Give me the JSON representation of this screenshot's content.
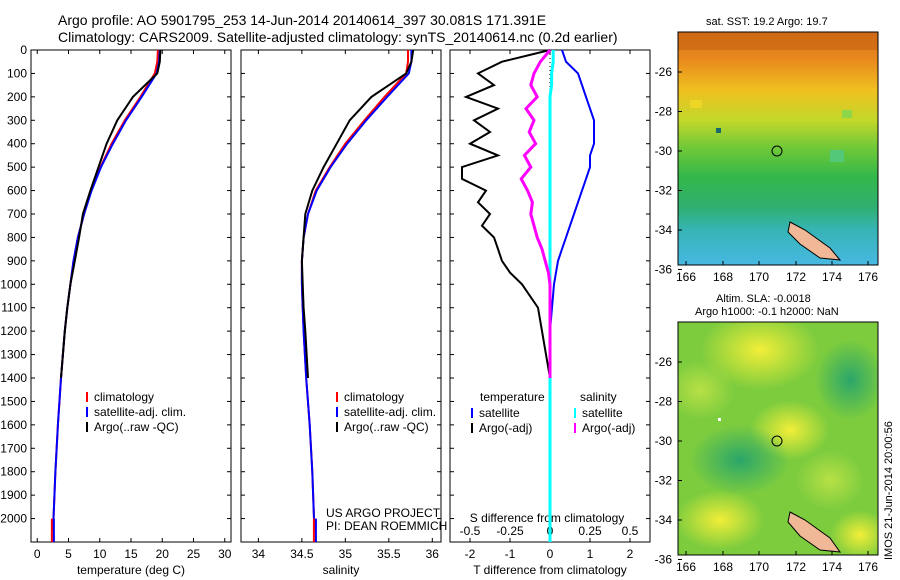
{
  "header": {
    "line1": "Argo profile: AO 5901795_253 14-Jun-2014 20140614_397 30.081S 171.391E",
    "line2": "Climatology: CARS2009. Satellite-adjusted climatology: synTS_20140614.nc (0.2d earlier)"
  },
  "credit": {
    "line1": "US ARGO PROJECT",
    "line2": "PI: DEAN ROEMMICH"
  },
  "stamp": "IMOS 21-Jun-2014 20:00:56",
  "maps": {
    "sst_title": "sat. SST: 19.2 Argo: 19.7",
    "sla_title1": "Altim. SLA: -0.0018",
    "sla_title2": "Argo h1000: -0.1 h2000: NaN",
    "lon_ticks": [
      "166",
      "168",
      "170",
      "172",
      "174",
      "176"
    ],
    "lat_ticks": [
      "-26",
      "-28",
      "-30",
      "-32",
      "-34",
      "-36"
    ],
    "argo_position": {
      "lon": 171.391,
      "lat": -30.081
    }
  },
  "colors": {
    "climatology": "#ff0000",
    "satellite": "#0000ff",
    "argo": "#000000",
    "salinity_satellite": "#00ffff",
    "salinity_argo": "#ff00ff"
  },
  "chart_data": [
    {
      "type": "line",
      "xlabel": "temperature (deg C)",
      "ylabel": "",
      "xlim": [
        -1,
        31
      ],
      "ylim": [
        2100,
        0
      ],
      "xticks": [
        "0",
        "5",
        "10",
        "15",
        "20",
        "25",
        "30"
      ],
      "yticks": [
        "0",
        "100",
        "200",
        "300",
        "400",
        "500",
        "600",
        "700",
        "800",
        "900",
        "1000",
        "1100",
        "1200",
        "1300",
        "1400",
        "1500",
        "1600",
        "1700",
        "1800",
        "1900",
        "2000"
      ],
      "depth": [
        0,
        50,
        100,
        200,
        300,
        400,
        500,
        600,
        700,
        800,
        900,
        1000,
        1100,
        1200,
        1400,
        1600,
        1800,
        2000,
        2050
      ],
      "legend": [
        "climatology",
        "satellite-adj. clim.",
        "Argo(..raw -QC)"
      ],
      "series": [
        {
          "name": "climatology",
          "values": [
            19.3,
            19.2,
            18.8,
            16.5,
            14.0,
            11.9,
            10.1,
            8.6,
            7.5,
            6.5,
            5.8,
            5.3,
            4.8,
            4.4,
            3.8,
            3.3,
            2.9,
            2.6,
            2.5
          ]
        },
        {
          "name": "satellite-adj. clim.",
          "values": [
            19.6,
            19.5,
            19.1,
            16.7,
            14.2,
            12.1,
            10.2,
            8.7,
            7.5,
            6.5,
            5.8,
            5.3,
            4.8,
            4.4,
            3.8,
            3.3,
            2.9,
            2.6,
            2.5
          ]
        },
        {
          "name": "Argo(..raw -QC)",
          "values": [
            19.7,
            19.6,
            19.2,
            15.3,
            12.8,
            11.1,
            9.8,
            8.5,
            7.3,
            6.7,
            6.0,
            5.3,
            4.8,
            4.4,
            3.8
          ]
        }
      ]
    },
    {
      "type": "line",
      "xlabel": "salinity",
      "ylabel": "",
      "xlim": [
        33.8,
        36.1
      ],
      "ylim": [
        2100,
        0
      ],
      "xticks": [
        "34",
        "34.5",
        "35",
        "35.5",
        "36"
      ],
      "depth": [
        0,
        50,
        100,
        200,
        300,
        400,
        500,
        600,
        700,
        800,
        900,
        1000,
        1100,
        1200,
        1400,
        1600,
        1800,
        2000,
        2050
      ],
      "legend": [
        "climatology",
        "satellite-adj. clim.",
        "Argo(..raw -QC)"
      ],
      "series": [
        {
          "name": "climatology",
          "values": [
            35.72,
            35.72,
            35.7,
            35.45,
            35.22,
            35.0,
            34.82,
            34.66,
            34.57,
            34.52,
            34.5,
            34.5,
            34.51,
            34.52,
            34.55,
            34.59,
            34.62,
            34.64,
            34.65
          ]
        },
        {
          "name": "satellite-adj. clim.",
          "values": [
            35.76,
            35.76,
            35.73,
            35.48,
            35.24,
            35.02,
            34.83,
            34.67,
            34.57,
            34.52,
            34.5,
            34.5,
            34.51,
            34.52,
            34.55,
            34.59,
            34.62,
            34.64,
            34.65
          ]
        },
        {
          "name": "Argo(..raw -QC)",
          "values": [
            35.78,
            35.76,
            35.7,
            35.3,
            35.05,
            34.9,
            34.75,
            34.62,
            34.54,
            34.52,
            34.5,
            34.51,
            34.52,
            34.54,
            34.57
          ]
        }
      ]
    },
    {
      "type": "line",
      "xlabel": "T difference from climatology",
      "xlabel_top": "S difference from climatology",
      "ylabel": "",
      "xlim": [
        -2.5,
        2.5
      ],
      "ylim": [
        2100,
        0
      ],
      "xticks": [
        "-2",
        "-1",
        "0",
        "1",
        "2"
      ],
      "xticks_top": [
        "-0.5",
        "-0.25",
        "0",
        "0.25",
        "0.5"
      ],
      "depth": [
        0,
        50,
        100,
        150,
        200,
        250,
        300,
        350,
        400,
        450,
        500,
        550,
        600,
        650,
        700,
        750,
        800,
        850,
        900,
        950,
        1000,
        1100,
        1200,
        1300,
        1400
      ],
      "legend_titles": [
        "temperature",
        "salinity"
      ],
      "legend": [
        "satellite",
        "Argo(-adj)",
        "satellite",
        "Argo(-adj)"
      ],
      "series": [
        {
          "name": "satellite",
          "group": "temperature",
          "values": [
            0.3,
            0.4,
            0.7,
            0.8,
            0.9,
            1.0,
            1.1,
            1.1,
            1.1,
            1.0,
            1.0,
            0.9,
            0.8,
            0.7,
            0.6,
            0.5,
            0.4,
            0.3,
            0.2,
            0.15,
            0.1,
            0.05,
            0.0,
            0.0,
            0.0
          ]
        },
        {
          "name": "Argo(-adj)",
          "group": "temperature",
          "values": [
            0.0,
            -1.2,
            -1.8,
            -1.4,
            -2.1,
            -1.3,
            -1.9,
            -1.5,
            -2.0,
            -1.3,
            -2.2,
            -2.2,
            -1.6,
            -1.8,
            -1.5,
            -1.7,
            -1.4,
            -1.3,
            -1.2,
            -1.0,
            -0.7,
            -0.3,
            -0.2,
            -0.1,
            0.0
          ]
        },
        {
          "name": "satellite",
          "group": "salinity",
          "values": [
            0.02,
            0.02,
            0.01,
            0.01,
            0.0,
            0.0,
            0.0,
            0.0,
            0.0,
            0.0,
            0.0,
            0.0,
            0.0,
            0.0,
            0.0,
            0.0,
            0.0,
            0.0,
            0.0,
            0.0,
            0.0,
            0.0,
            0.0,
            0.0,
            0.0
          ]
        },
        {
          "name": "Argo(-adj)",
          "group": "salinity",
          "values": [
            0.0,
            -0.06,
            -0.1,
            -0.12,
            -0.08,
            -0.15,
            -0.1,
            -0.13,
            -0.09,
            -0.16,
            -0.12,
            -0.18,
            -0.14,
            -0.11,
            -0.12,
            -0.1,
            -0.08,
            -0.05,
            -0.03,
            -0.01,
            0.0,
            0.0,
            0.0,
            0.0,
            0.0
          ]
        }
      ]
    }
  ]
}
